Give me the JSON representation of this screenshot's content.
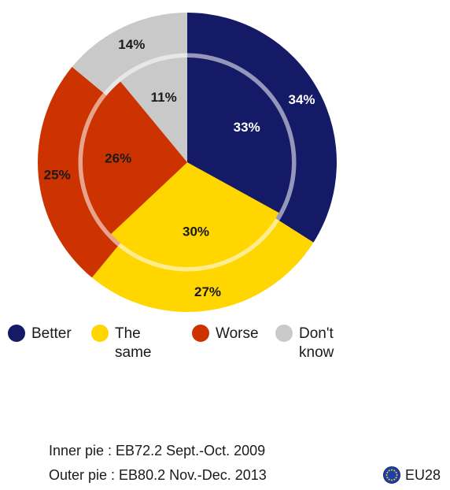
{
  "chart_data": {
    "type": "pie",
    "categories": [
      "Better",
      "The same",
      "Worse",
      "Don't know"
    ],
    "colors": [
      "#141a66",
      "#ffd600",
      "#cc3300",
      "#c9c9c9"
    ],
    "series": [
      {
        "name": "Inner pie",
        "values": [
          33,
          30,
          26,
          11
        ],
        "labels": [
          "33%",
          "30%",
          "26%",
          "11%"
        ]
      },
      {
        "name": "Outer pie",
        "values": [
          34,
          27,
          25,
          14
        ],
        "labels": [
          "34%",
          "27%",
          "25%",
          "14%"
        ]
      }
    ]
  },
  "legend": [
    {
      "label": "Better",
      "color": "#141a66"
    },
    {
      "label": "The same",
      "color": "#ffd600"
    },
    {
      "label": "Worse",
      "color": "#cc3300"
    },
    {
      "label": "Don't know",
      "color": "#c9c9c9"
    }
  ],
  "notes": {
    "inner": "Inner pie :  EB72.2 Sept.-Oct. 2009",
    "outer": "Outer pie :  EB80.2 Nov.-Dec. 2013"
  },
  "badge": {
    "label": "EU28",
    "icon": "eu-flag-icon"
  }
}
